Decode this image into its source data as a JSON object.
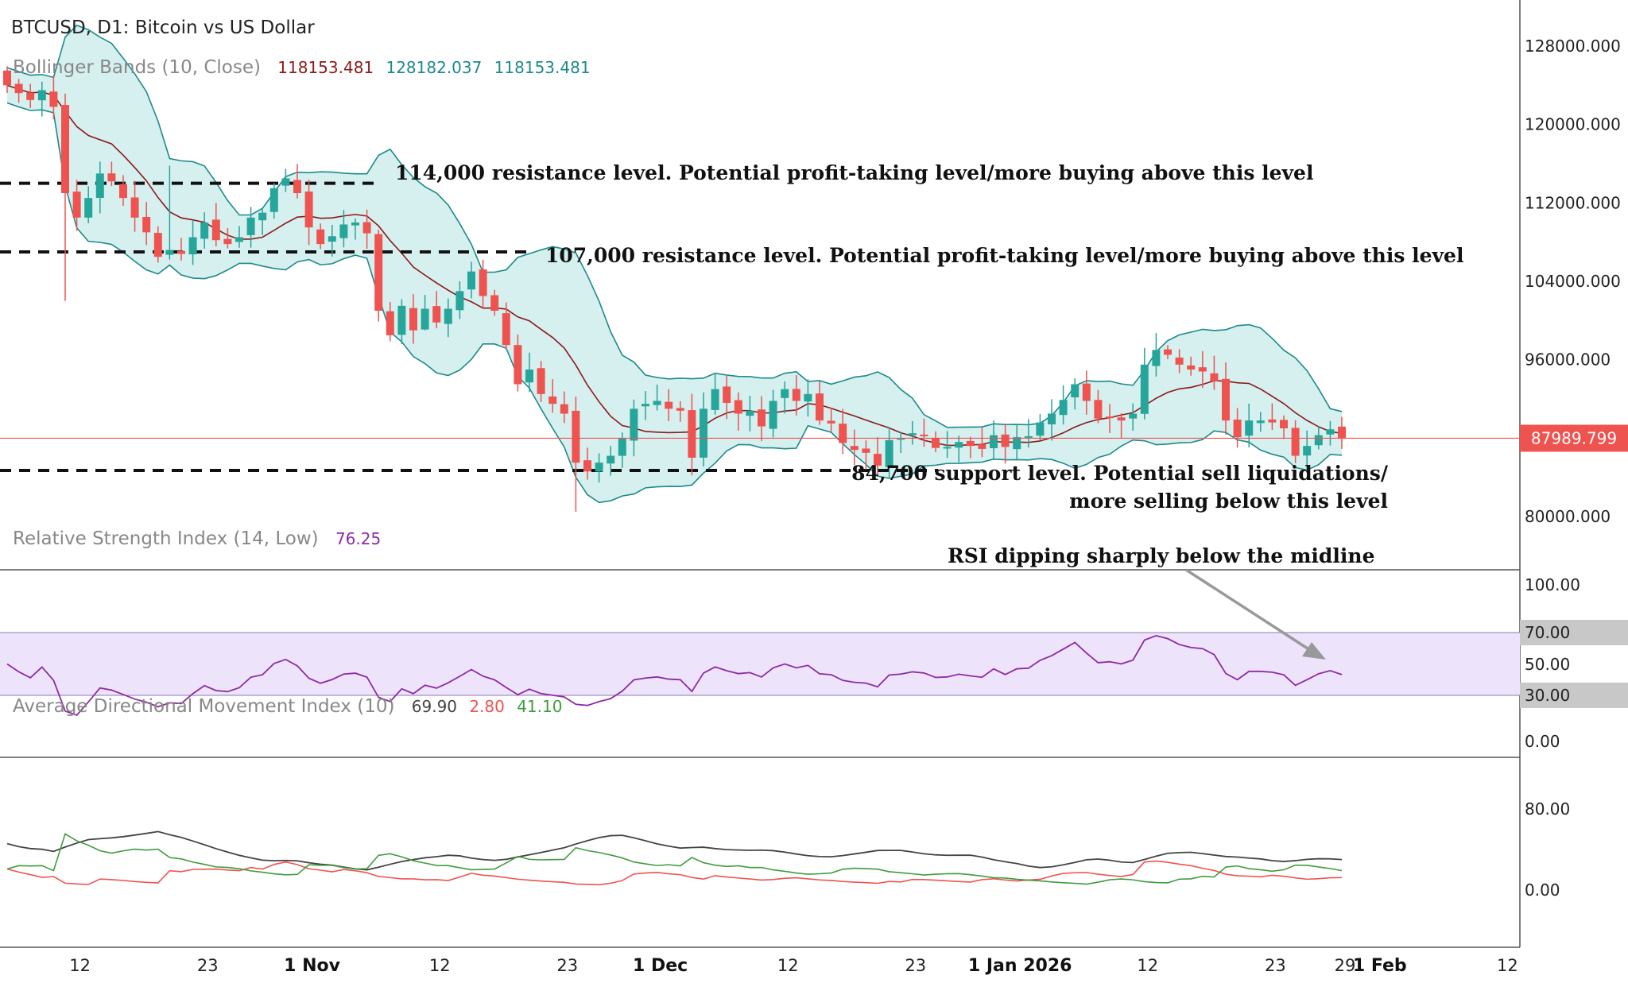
{
  "chart_data": {
    "type": "candlestick",
    "symbol_title": "BTCUSD, D1: Bitcoin vs US Dollar",
    "last_price": 87989.799,
    "price_axis": {
      "ticks": [
        "128000.000",
        "120000.000",
        "112000.000",
        "104000.000",
        "96000.000",
        "80000.000"
      ],
      "range": [
        79000,
        130500
      ]
    },
    "x_axis": {
      "ticks": [
        {
          "label": "12",
          "index": 6,
          "bold": false
        },
        {
          "label": "23",
          "index": 17,
          "bold": false
        },
        {
          "label": "1 Nov",
          "index": 26,
          "bold": true
        },
        {
          "label": "12",
          "index": 37,
          "bold": false
        },
        {
          "label": "23",
          "index": 48,
          "bold": false
        },
        {
          "label": "1 Dec",
          "index": 56,
          "bold": true
        },
        {
          "label": "12",
          "index": 67,
          "bold": false
        },
        {
          "label": "23",
          "index": 78,
          "bold": false
        },
        {
          "label": "1 Jan 2026",
          "index": 87,
          "bold": true
        },
        {
          "label": "12",
          "index": 98,
          "bold": false
        },
        {
          "label": "23",
          "index": 109,
          "bold": false
        },
        {
          "label": "29",
          "index": 115,
          "bold": false
        },
        {
          "label": "1 Feb",
          "index": 118,
          "bold": true
        },
        {
          "label": "12",
          "index": 129,
          "bold": false
        }
      ]
    },
    "candles_close": [
      124000,
      123200,
      122500,
      123500,
      121800,
      113000,
      110500,
      112500,
      115000,
      114200,
      112500,
      110500,
      109000,
      106500,
      107200,
      106800,
      108500,
      110000,
      108200,
      107800,
      108500,
      110500,
      111000,
      113500,
      114500,
      113000,
      109500,
      107800,
      108600,
      109800,
      110000,
      108900,
      101000,
      98500,
      101500,
      99000,
      101200,
      99800,
      101200,
      103000,
      105000,
      102500,
      101000,
      97500,
      93500,
      95000,
      92500,
      91500,
      90500,
      85500,
      84600,
      85500,
      86200,
      88000,
      91000,
      91500,
      91800,
      91000,
      90800,
      86000,
      91000,
      93000,
      91600,
      90500,
      90800,
      89200,
      91800,
      93000,
      91800,
      92500,
      89800,
      89500,
      87500,
      86800,
      86500,
      85200,
      87800,
      88000,
      88500,
      88200,
      87000,
      87100,
      87600,
      87200,
      86900,
      88300,
      87100,
      88100,
      88200,
      89600,
      90500,
      91900,
      93500,
      91800,
      90000,
      90200,
      89800,
      90500,
      95500,
      97000,
      96500,
      95500,
      95000,
      94800,
      93800,
      89800,
      88100,
      89800,
      89800,
      89600,
      89000,
      86200,
      87200,
      88300,
      88900,
      87989.8
    ],
    "bollinger": {
      "label": "Bollinger Bands (10, Close)",
      "values": [
        "118153.481",
        "128182.037",
        "118153.481"
      ]
    },
    "rsi": {
      "label": "Relative Strength Index (14, Low)",
      "value": "76.25",
      "ticks": [
        "100.00",
        "70.00",
        "50.00",
        "30.00",
        "0.00"
      ]
    },
    "adx": {
      "label": "Average Directional Movement Index (10)",
      "values": [
        "69.90",
        "2.80",
        "41.10"
      ],
      "ticks": [
        "80.00",
        "0.00"
      ]
    },
    "levels": [
      {
        "price": 114000,
        "text": "114,000 resistance level. Potential profit-taking level/more buying above this level"
      },
      {
        "price": 107000,
        "text": "107,000 resistance level. Potential profit-taking level/more buying above this level"
      },
      {
        "price": 84700,
        "text_line1": "84,700 support level. Potential sell liquidations/",
        "text_line2": "more selling below this level"
      }
    ],
    "rsi_annotation": "RSI dipping sharply below the midline",
    "colors": {
      "up": "#26a69a",
      "down": "#ef5350",
      "band": "#1e8a8a",
      "band_fill": "#d6efef",
      "rsi": "#8e2aa5",
      "rsi_zone": "#ede4fb",
      "adx": "#444444",
      "di_plus": "#ef5350",
      "di_minus": "#3f9c3f",
      "price_line": "#ef5350"
    }
  }
}
